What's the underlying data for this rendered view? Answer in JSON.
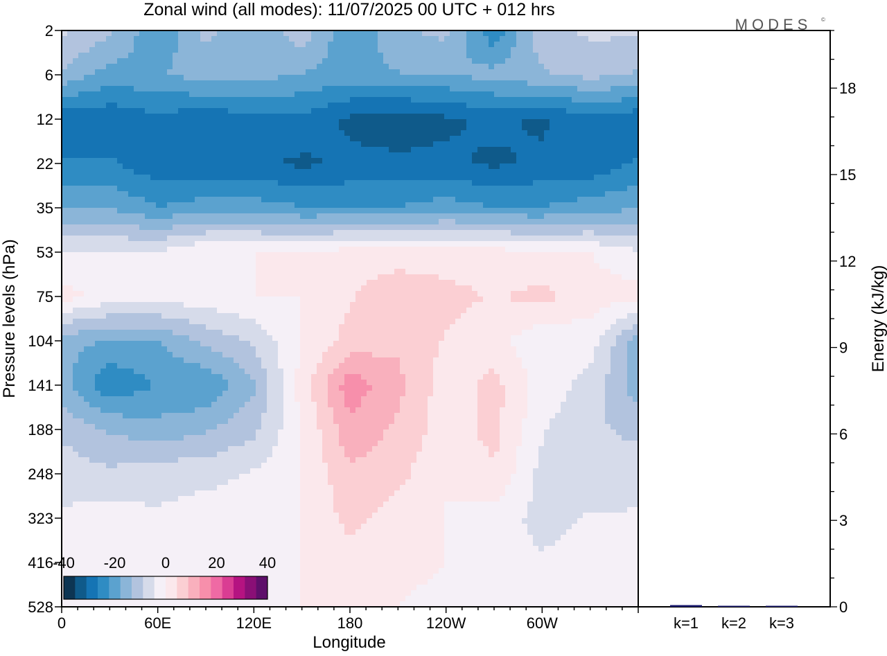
{
  "title": "Zonal wind (all modes):  11/07/2025  00 UTC  + 012 hrs",
  "logo": "MODES",
  "chart_data": [
    {
      "type": "heatmap",
      "title": "Zonal wind (all modes):  11/07/2025  00 UTC  + 012 hrs",
      "xlabel": "Longitude",
      "ylabel": "Pressure levels (hPa)",
      "x_ticks": [
        "0",
        "60E",
        "120E",
        "180",
        "120W",
        "60W"
      ],
      "y_ticks": [
        "2",
        "6",
        "12",
        "22",
        "35",
        "53",
        "75",
        "104",
        "141",
        "188",
        "248",
        "323",
        "416",
        "528"
      ],
      "colorbar": {
        "ticks": [
          "-40",
          "-20",
          "0",
          "20",
          "40"
        ],
        "range": [
          -40,
          40
        ],
        "colors": [
          "#0d3553",
          "#0f5a8a",
          "#1574b4",
          "#2f8cc3",
          "#5ba2cf",
          "#8bb5d8",
          "#b2c3de",
          "#d6dbea",
          "#f5f0f7",
          "#fbe8ec",
          "#fbcfd3",
          "#f9b0bd",
          "#f78fab",
          "#ef6aa4",
          "#da3d93",
          "#b51381",
          "#8a0f76",
          "#5e0f6a"
        ]
      },
      "field": {
        "levels": [
          "2",
          "6",
          "12",
          "22",
          "35",
          "53",
          "75",
          "104",
          "141",
          "188",
          "248",
          "323",
          "416",
          "528"
        ],
        "longitudes": [
          0,
          30,
          60,
          90,
          120,
          150,
          180,
          210,
          240,
          270,
          300,
          330
        ],
        "values": [
          [
            -8,
            -12,
            -22,
            -12,
            -18,
            -10,
            -22,
            -14,
            -12,
            -26,
            -10,
            -8
          ],
          [
            -14,
            -20,
            -18,
            -16,
            -16,
            -18,
            -20,
            -18,
            -18,
            -16,
            -14,
            -12
          ],
          [
            -30,
            -30,
            -28,
            -30,
            -28,
            -28,
            -32,
            -34,
            -32,
            -30,
            -32,
            -28
          ],
          [
            -26,
            -26,
            -30,
            -30,
            -30,
            -32,
            -30,
            -30,
            -30,
            -32,
            -30,
            -30
          ],
          [
            -18,
            -18,
            -22,
            -20,
            -20,
            -22,
            -22,
            -22,
            -20,
            -22,
            -22,
            -20
          ],
          [
            -4,
            -4,
            -4,
            0,
            0,
            0,
            2,
            2,
            2,
            2,
            0,
            0
          ],
          [
            2,
            -2,
            -2,
            -2,
            0,
            0,
            4,
            8,
            6,
            4,
            6,
            2
          ],
          [
            -16,
            -18,
            -18,
            -12,
            -8,
            0,
            6,
            8,
            4,
            2,
            -4,
            -2
          ],
          [
            -16,
            -26,
            -22,
            -22,
            -14,
            2,
            16,
            10,
            2,
            6,
            -2,
            -6
          ],
          [
            -10,
            -14,
            -16,
            -14,
            -10,
            0,
            12,
            8,
            2,
            6,
            -4,
            -8
          ],
          [
            -6,
            -8,
            -6,
            -6,
            -4,
            0,
            8,
            6,
            0,
            4,
            -6,
            -8
          ],
          [
            -4,
            -2,
            -4,
            -2,
            -2,
            0,
            6,
            2,
            0,
            -2,
            -6,
            -4
          ],
          [
            -2,
            0,
            -2,
            0,
            -2,
            0,
            2,
            2,
            0,
            -2,
            -4,
            -2
          ],
          [
            -2,
            0,
            -2,
            -2,
            -2,
            0,
            0,
            0,
            -2,
            -2,
            -2,
            -2
          ]
        ]
      }
    },
    {
      "type": "bar",
      "ylabel": "Energy (kJ/kg)",
      "categories": [
        "k=1",
        "k=2",
        "k=3"
      ],
      "values": [
        0.06,
        0.03,
        0.02
      ],
      "y_ticks": [
        "0",
        "3",
        "6",
        "9",
        "12",
        "15",
        "18"
      ],
      "ylim": [
        0,
        20
      ]
    }
  ]
}
